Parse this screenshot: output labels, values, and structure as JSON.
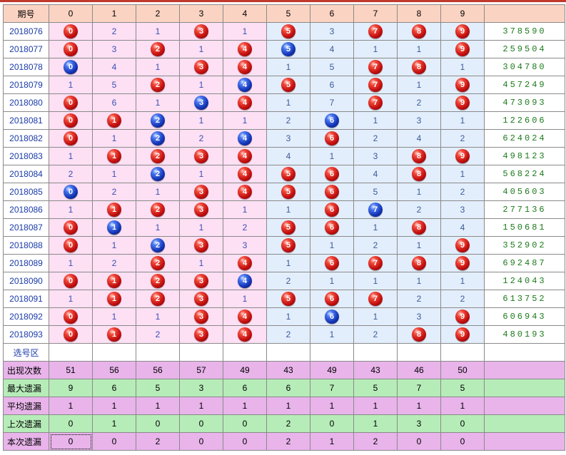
{
  "header": {
    "period_label": "期号",
    "digits": [
      "0",
      "1",
      "2",
      "3",
      "4",
      "5",
      "6",
      "7",
      "8",
      "9"
    ],
    "result_label": ""
  },
  "rows": [
    {
      "period": "2018076",
      "result": "378590",
      "cells": [
        {
          "v": "0",
          "b": "red"
        },
        {
          "v": "2",
          "b": ""
        },
        {
          "v": "1",
          "b": ""
        },
        {
          "v": "3",
          "b": "red"
        },
        {
          "v": "1",
          "b": ""
        },
        {
          "v": "5",
          "b": "red"
        },
        {
          "v": "3",
          "b": ""
        },
        {
          "v": "7",
          "b": "red"
        },
        {
          "v": "8",
          "b": "red"
        },
        {
          "v": "9",
          "b": "red"
        }
      ]
    },
    {
      "period": "2018077",
      "result": "259504",
      "cells": [
        {
          "v": "0",
          "b": "red"
        },
        {
          "v": "3",
          "b": ""
        },
        {
          "v": "2",
          "b": "red"
        },
        {
          "v": "1",
          "b": ""
        },
        {
          "v": "4",
          "b": "red"
        },
        {
          "v": "5",
          "b": "blue"
        },
        {
          "v": "4",
          "b": ""
        },
        {
          "v": "1",
          "b": ""
        },
        {
          "v": "1",
          "b": ""
        },
        {
          "v": "9",
          "b": "red"
        }
      ]
    },
    {
      "period": "2018078",
      "result": "304780",
      "cells": [
        {
          "v": "0",
          "b": "blue"
        },
        {
          "v": "4",
          "b": ""
        },
        {
          "v": "1",
          "b": ""
        },
        {
          "v": "3",
          "b": "red"
        },
        {
          "v": "4",
          "b": "red"
        },
        {
          "v": "1",
          "b": ""
        },
        {
          "v": "5",
          "b": ""
        },
        {
          "v": "7",
          "b": "red"
        },
        {
          "v": "8",
          "b": "red"
        },
        {
          "v": "1",
          "b": ""
        }
      ]
    },
    {
      "period": "2018079",
      "result": "457249",
      "cells": [
        {
          "v": "1",
          "b": ""
        },
        {
          "v": "5",
          "b": ""
        },
        {
          "v": "2",
          "b": "red"
        },
        {
          "v": "1",
          "b": ""
        },
        {
          "v": "4",
          "b": "blue"
        },
        {
          "v": "5",
          "b": "red"
        },
        {
          "v": "6",
          "b": ""
        },
        {
          "v": "7",
          "b": "red"
        },
        {
          "v": "1",
          "b": ""
        },
        {
          "v": "9",
          "b": "red"
        }
      ]
    },
    {
      "period": "2018080",
      "result": "473093",
      "cells": [
        {
          "v": "0",
          "b": "red"
        },
        {
          "v": "6",
          "b": ""
        },
        {
          "v": "1",
          "b": ""
        },
        {
          "v": "3",
          "b": "blue"
        },
        {
          "v": "4",
          "b": "red"
        },
        {
          "v": "1",
          "b": ""
        },
        {
          "v": "7",
          "b": ""
        },
        {
          "v": "7",
          "b": "red"
        },
        {
          "v": "2",
          "b": ""
        },
        {
          "v": "9",
          "b": "red"
        }
      ]
    },
    {
      "period": "2018081",
      "result": "122606",
      "cells": [
        {
          "v": "0",
          "b": "red"
        },
        {
          "v": "1",
          "b": "red"
        },
        {
          "v": "2",
          "b": "blue"
        },
        {
          "v": "1",
          "b": ""
        },
        {
          "v": "1",
          "b": ""
        },
        {
          "v": "2",
          "b": ""
        },
        {
          "v": "6",
          "b": "blue"
        },
        {
          "v": "1",
          "b": ""
        },
        {
          "v": "3",
          "b": ""
        },
        {
          "v": "1",
          "b": ""
        }
      ]
    },
    {
      "period": "2018082",
      "result": "624024",
      "cells": [
        {
          "v": "0",
          "b": "red"
        },
        {
          "v": "1",
          "b": ""
        },
        {
          "v": "2",
          "b": "blue"
        },
        {
          "v": "2",
          "b": ""
        },
        {
          "v": "4",
          "b": "blue"
        },
        {
          "v": "3",
          "b": ""
        },
        {
          "v": "6",
          "b": "red"
        },
        {
          "v": "2",
          "b": ""
        },
        {
          "v": "4",
          "b": ""
        },
        {
          "v": "2",
          "b": ""
        }
      ]
    },
    {
      "period": "2018083",
      "result": "498123",
      "cells": [
        {
          "v": "1",
          "b": ""
        },
        {
          "v": "1",
          "b": "red"
        },
        {
          "v": "2",
          "b": "red"
        },
        {
          "v": "3",
          "b": "red"
        },
        {
          "v": "4",
          "b": "red"
        },
        {
          "v": "4",
          "b": ""
        },
        {
          "v": "1",
          "b": ""
        },
        {
          "v": "3",
          "b": ""
        },
        {
          "v": "8",
          "b": "red"
        },
        {
          "v": "9",
          "b": "red"
        }
      ]
    },
    {
      "period": "2018084",
      "result": "568224",
      "cells": [
        {
          "v": "2",
          "b": ""
        },
        {
          "v": "1",
          "b": ""
        },
        {
          "v": "2",
          "b": "blue"
        },
        {
          "v": "1",
          "b": ""
        },
        {
          "v": "4",
          "b": "red"
        },
        {
          "v": "5",
          "b": "red"
        },
        {
          "v": "6",
          "b": "red"
        },
        {
          "v": "4",
          "b": ""
        },
        {
          "v": "8",
          "b": "red"
        },
        {
          "v": "1",
          "b": ""
        }
      ]
    },
    {
      "period": "2018085",
      "result": "405603",
      "cells": [
        {
          "v": "0",
          "b": "blue"
        },
        {
          "v": "2",
          "b": ""
        },
        {
          "v": "1",
          "b": ""
        },
        {
          "v": "3",
          "b": "red"
        },
        {
          "v": "4",
          "b": "red"
        },
        {
          "v": "5",
          "b": "red"
        },
        {
          "v": "6",
          "b": "red"
        },
        {
          "v": "5",
          "b": ""
        },
        {
          "v": "1",
          "b": ""
        },
        {
          "v": "2",
          "b": ""
        }
      ]
    },
    {
      "period": "2018086",
      "result": "277136",
      "cells": [
        {
          "v": "1",
          "b": ""
        },
        {
          "v": "1",
          "b": "red"
        },
        {
          "v": "2",
          "b": "red"
        },
        {
          "v": "3",
          "b": "red"
        },
        {
          "v": "1",
          "b": ""
        },
        {
          "v": "1",
          "b": ""
        },
        {
          "v": "6",
          "b": "red"
        },
        {
          "v": "7",
          "b": "blue"
        },
        {
          "v": "2",
          "b": ""
        },
        {
          "v": "3",
          "b": ""
        }
      ]
    },
    {
      "period": "2018087",
      "result": "150681",
      "cells": [
        {
          "v": "0",
          "b": "red"
        },
        {
          "v": "1",
          "b": "blue"
        },
        {
          "v": "1",
          "b": ""
        },
        {
          "v": "1",
          "b": ""
        },
        {
          "v": "2",
          "b": ""
        },
        {
          "v": "5",
          "b": "red"
        },
        {
          "v": "6",
          "b": "red"
        },
        {
          "v": "1",
          "b": ""
        },
        {
          "v": "8",
          "b": "red"
        },
        {
          "v": "4",
          "b": ""
        }
      ]
    },
    {
      "period": "2018088",
      "result": "352902",
      "cells": [
        {
          "v": "0",
          "b": "red"
        },
        {
          "v": "1",
          "b": ""
        },
        {
          "v": "2",
          "b": "blue"
        },
        {
          "v": "3",
          "b": "red"
        },
        {
          "v": "3",
          "b": ""
        },
        {
          "v": "5",
          "b": "red"
        },
        {
          "v": "1",
          "b": ""
        },
        {
          "v": "2",
          "b": ""
        },
        {
          "v": "1",
          "b": ""
        },
        {
          "v": "9",
          "b": "red"
        }
      ]
    },
    {
      "period": "2018089",
      "result": "692487",
      "cells": [
        {
          "v": "1",
          "b": ""
        },
        {
          "v": "2",
          "b": ""
        },
        {
          "v": "2",
          "b": "red"
        },
        {
          "v": "1",
          "b": ""
        },
        {
          "v": "4",
          "b": "red"
        },
        {
          "v": "1",
          "b": ""
        },
        {
          "v": "6",
          "b": "red"
        },
        {
          "v": "7",
          "b": "red"
        },
        {
          "v": "8",
          "b": "red"
        },
        {
          "v": "9",
          "b": "red"
        }
      ]
    },
    {
      "period": "2018090",
      "result": "124043",
      "cells": [
        {
          "v": "0",
          "b": "red"
        },
        {
          "v": "1",
          "b": "red"
        },
        {
          "v": "2",
          "b": "red"
        },
        {
          "v": "3",
          "b": "red"
        },
        {
          "v": "4",
          "b": "blue"
        },
        {
          "v": "2",
          "b": ""
        },
        {
          "v": "1",
          "b": ""
        },
        {
          "v": "1",
          "b": ""
        },
        {
          "v": "1",
          "b": ""
        },
        {
          "v": "1",
          "b": ""
        }
      ]
    },
    {
      "period": "2018091",
      "result": "613752",
      "cells": [
        {
          "v": "1",
          "b": ""
        },
        {
          "v": "1",
          "b": "red"
        },
        {
          "v": "2",
          "b": "red"
        },
        {
          "v": "3",
          "b": "red"
        },
        {
          "v": "1",
          "b": ""
        },
        {
          "v": "5",
          "b": "red"
        },
        {
          "v": "6",
          "b": "red"
        },
        {
          "v": "7",
          "b": "red"
        },
        {
          "v": "2",
          "b": ""
        },
        {
          "v": "2",
          "b": ""
        }
      ]
    },
    {
      "period": "2018092",
      "result": "606943",
      "cells": [
        {
          "v": "0",
          "b": "red"
        },
        {
          "v": "1",
          "b": ""
        },
        {
          "v": "1",
          "b": ""
        },
        {
          "v": "3",
          "b": "red"
        },
        {
          "v": "4",
          "b": "red"
        },
        {
          "v": "1",
          "b": ""
        },
        {
          "v": "6",
          "b": "blue"
        },
        {
          "v": "1",
          "b": ""
        },
        {
          "v": "3",
          "b": ""
        },
        {
          "v": "9",
          "b": "red"
        }
      ]
    },
    {
      "period": "2018093",
      "result": "480193",
      "cells": [
        {
          "v": "0",
          "b": "red"
        },
        {
          "v": "1",
          "b": "red"
        },
        {
          "v": "2",
          "b": ""
        },
        {
          "v": "3",
          "b": "red"
        },
        {
          "v": "4",
          "b": "red"
        },
        {
          "v": "2",
          "b": ""
        },
        {
          "v": "1",
          "b": ""
        },
        {
          "v": "2",
          "b": ""
        },
        {
          "v": "8",
          "b": "red"
        },
        {
          "v": "9",
          "b": "red"
        }
      ]
    }
  ],
  "select_row_label": "选号区",
  "stats": [
    {
      "label": "出现次数",
      "values": [
        "51",
        "56",
        "56",
        "57",
        "49",
        "43",
        "49",
        "43",
        "46",
        "50"
      ]
    },
    {
      "label": "最大遗漏",
      "values": [
        "9",
        "6",
        "5",
        "3",
        "6",
        "6",
        "7",
        "5",
        "7",
        "5"
      ]
    },
    {
      "label": "平均遗漏",
      "values": [
        "1",
        "1",
        "1",
        "1",
        "1",
        "1",
        "1",
        "1",
        "1",
        "1"
      ]
    },
    {
      "label": "上次遗漏",
      "values": [
        "0",
        "1",
        "0",
        "0",
        "0",
        "2",
        "0",
        "1",
        "3",
        "0"
      ]
    },
    {
      "label": "本次遗漏",
      "values": [
        "0",
        "0",
        "2",
        "0",
        "0",
        "2",
        "1",
        "2",
        "0",
        "0"
      ]
    }
  ],
  "colors": {
    "header_bg": "#fbd3c2",
    "zone_a_bg": "#fde0f4",
    "zone_b_bg": "#e3eefc",
    "stat_purple": "#e8b4ea",
    "stat_green": "#b6ecb8",
    "result_text": "#1b7a1b",
    "period_text": "#1a3aa8"
  },
  "icons": {
    "red": "red-ball-icon",
    "blue": "blue-ball-icon"
  }
}
